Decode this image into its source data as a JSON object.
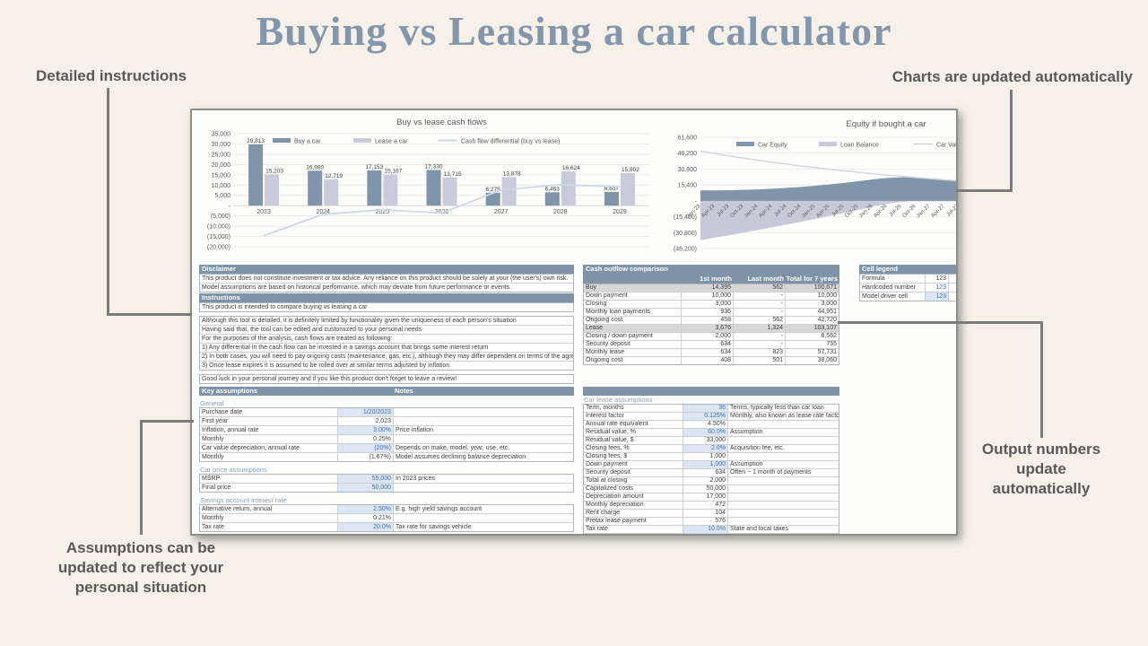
{
  "page": {
    "title": "Buying vs Leasing a car calculator",
    "annotations": {
      "top_left": "Detailed instructions",
      "top_right": "Charts are updated automatically",
      "output": "Output numbers update automatically",
      "assumptions": "Assumptions can be updated to reflect your personal situation"
    }
  },
  "colors": {
    "page_bg": "#f5f1e8",
    "title": "#8496ac",
    "annotation": "#595959",
    "connector": "#7b7b7b",
    "slate_header": "#7e92a8",
    "accent_blue": "#3f6cc0",
    "driver_bg": "#dbe6f2",
    "highlight_row": "#d7d7d7",
    "buy_series": "#8094aa",
    "lease_series": "#c9cada",
    "diff_line": "#ccd8e4",
    "car_value_line": "#d0d7dd"
  },
  "chart_data": [
    {
      "type": "bar",
      "title": "Buy vs lease cash flows",
      "categories": [
        "2023",
        "2024",
        "2025",
        "2026",
        "2027",
        "2028",
        "2029"
      ],
      "series": [
        {
          "name": "Buy a car",
          "kind": "bar",
          "color": "#8094aa",
          "values": [
            29813,
            16980,
            17153,
            17330,
            6275,
            6463,
            6657
          ]
        },
        {
          "name": "Lease a car",
          "kind": "bar",
          "color": "#c9cada",
          "values": [
            15203,
            12719,
            15167,
            13715,
            13878,
            16624,
            15802
          ]
        },
        {
          "name": "Cash flow differential (buy vs lease)",
          "kind": "line",
          "color": "#ccd8e4",
          "values": [
            -14610,
            -4261,
            -1986,
            -3615,
            7603,
            10161,
            9145
          ]
        }
      ],
      "ylim": [
        -20000,
        35000
      ],
      "ytick_step": 5000,
      "grid": true,
      "legend_position": "top"
    },
    {
      "type": "area",
      "title": "Equity if bought a car",
      "x": [
        "Jan-23",
        "Apr-23",
        "Jul-23",
        "Oct-23",
        "Jan-24",
        "Apr-24",
        "Jul-24",
        "Oct-24",
        "Jan-25",
        "Apr-25",
        "Jul-25",
        "Oct-25",
        "Jan-26",
        "Apr-26",
        "Jul-26",
        "Oct-26",
        "Jan-27",
        "Apr-27",
        "Jul-27",
        "Oct-27",
        "Jan-28",
        "Apr-28",
        "Jul-28",
        "Oct-28",
        "Jan-29",
        "Apr-29",
        "Jul-29",
        "Oct-29"
      ],
      "series": [
        {
          "name": "Car Equity",
          "kind": "area",
          "color": "#8094aa",
          "values": [
            10200,
            10100,
            10300,
            10600,
            11100,
            11700,
            12600,
            13500,
            14700,
            16000,
            17400,
            19000,
            20700,
            22100,
            22800,
            22600,
            21500,
            20400,
            19400,
            18500,
            17600,
            16700,
            15900,
            15100,
            14400,
            13700,
            13000,
            12400
          ]
        },
        {
          "name": "Loan Balance",
          "kind": "area",
          "color": "#c7c9d9",
          "values": [
            -38000,
            -35700,
            -33300,
            -30800,
            -28300,
            -25700,
            -23000,
            -20300,
            -17500,
            -14600,
            -11700,
            -8700,
            -5600,
            -2900,
            -1000,
            0,
            0,
            0,
            0,
            0,
            0,
            0,
            0,
            0,
            0,
            0,
            0,
            0
          ]
        },
        {
          "name": "Car Value",
          "kind": "line",
          "color": "#d0d7dd",
          "values": [
            48200,
            45800,
            43600,
            41400,
            39400,
            37400,
            35600,
            33800,
            32200,
            30600,
            29100,
            27700,
            26300,
            25000,
            23800,
            22600,
            21500,
            20400,
            19400,
            18500,
            17600,
            16700,
            15900,
            15100,
            14400,
            13700,
            13000,
            12400
          ]
        }
      ],
      "ylim": [
        -46200,
        61600
      ],
      "ytick_step": 15400,
      "grid": true,
      "legend_position": "top"
    }
  ],
  "tables": {
    "disclaimer": {
      "header": "Disclaimer",
      "rows": [
        "This product does not constitute investment or tax advice. Any reliance on this product should be solely at your (the user's) own risk.",
        "Model assumptions are based on historical performance, which may deviate from future performance or events."
      ]
    },
    "instructions": {
      "header": "Instructions",
      "groups": [
        [
          "This product is intended to compare buying vs leasing a car"
        ],
        [
          "Although this tool is detailed, it is definitely limited by functionality given the uniqueness of each person's situation",
          "Having said that, the tool can be edited and customized to your personal needs",
          "For the purposes of the analysis, cash flows are treated as following:",
          "1) Any differential in the cash flow can be invested in a savings account that brings some interest return",
          "2) In both cases, you will need to pay ongoing costs (maintenance, gas, etc.), although they may differ dependent on terms of the agreement",
          "3) Once lease expires it is assumed to be rolled over at similar terms adjusted by inflation"
        ],
        [
          "Good luck in your personal journey and if you like this product don't forget to leave a review!"
        ]
      ]
    },
    "key_assumptions": {
      "header": "Key assumptions",
      "notes_header": "Notes",
      "sections": [
        {
          "title": "General",
          "rows": [
            {
              "label": "Purchase date",
              "value": "1/20/2023",
              "style": "driver",
              "note": ""
            },
            {
              "label": "First year",
              "value": "2,023",
              "style": "formula",
              "note": ""
            },
            {
              "label": "Inflation, annual rate",
              "value": "3.00%",
              "style": "driver",
              "note": "Price inflation"
            },
            {
              "label": "Monthly",
              "value": "0.25%",
              "style": "formula",
              "note": ""
            },
            {
              "label": "Car value depreciation, annual rate",
              "value": "(20%)",
              "style": "driver",
              "note": "Depends on make, model, year, use, etc."
            },
            {
              "label": "Monthly",
              "value": "(1.67%)",
              "style": "formula",
              "note": "Model assumes declining balance depreciation"
            }
          ]
        },
        {
          "title": "Car price assumptions",
          "rows": [
            {
              "label": "MSRP",
              "value": "55,000",
              "style": "driver",
              "note": "In 2023 prices"
            },
            {
              "label": "Final price",
              "value": "50,000",
              "style": "driver",
              "note": ""
            }
          ]
        },
        {
          "title": "Savings account interest rate",
          "rows": [
            {
              "label": "Alternative return, annual",
              "value": "2.50%",
              "style": "driver",
              "note": "E.g. high yield savings account"
            },
            {
              "label": "Monthly",
              "value": "0.21%",
              "style": "formula",
              "note": ""
            },
            {
              "label": "Tax rate",
              "value": "20.0%",
              "style": "driver",
              "note": "Tax rate for savings vehicle"
            }
          ]
        },
        {
          "title": "Car loan assumptions",
          "rows": [
            {
              "label": "Rate",
              "value": "5.00%",
              "style": "driver",
              "note": ""
            }
          ]
        }
      ]
    },
    "cash_outflow": {
      "header": "Cash outflow comparison",
      "columns": [
        "1st month",
        "Last month",
        "Total for 7 years"
      ],
      "rows": [
        {
          "label": "Buy",
          "cells": [
            "14,395",
            "562",
            "100,671"
          ],
          "highlight": true
        },
        {
          "label": "Down payment",
          "cells": [
            "10,000",
            "-",
            "10,000"
          ]
        },
        {
          "label": "Closing",
          "cells": [
            "3,000",
            "-",
            "3,000"
          ]
        },
        {
          "label": "Monthly loan payments",
          "cells": [
            "936",
            "-",
            "44,951"
          ]
        },
        {
          "label": "Ongoing cost",
          "cells": [
            "458",
            "562",
            "42,720"
          ]
        },
        {
          "label": "Lease",
          "cells": [
            "3,676",
            "1,324",
            "103,107"
          ],
          "highlight": true
        },
        {
          "label": "Closing / down payment",
          "cells": [
            "2,000",
            "-",
            "6,562"
          ]
        },
        {
          "label": "Security deposit",
          "cells": [
            "634",
            "-",
            "755"
          ]
        },
        {
          "label": "Monthly lease",
          "cells": [
            "634",
            "823",
            "57,731"
          ]
        },
        {
          "label": "Ongoing cost",
          "cells": [
            "408",
            "501",
            "38,060"
          ]
        }
      ]
    },
    "cell_legend": {
      "header": "Cell legend",
      "rows": [
        {
          "label": "Formula",
          "value": "123",
          "style": "formula"
        },
        {
          "label": "Hardcoded number",
          "value": "123",
          "style": "hardcoded"
        },
        {
          "label": "Model driver cell",
          "value": "123",
          "style": "driver"
        }
      ]
    },
    "car_lease": {
      "title": "Car lease assumptions",
      "rows": [
        {
          "label": "Term, months",
          "value": "36",
          "style": "driver",
          "note": "Terms, typically less than car loan"
        },
        {
          "label": "Interest factor",
          "value": "0.125%",
          "style": "driver",
          "note": "Monthly, also known as lease rate factor"
        },
        {
          "label": "Annual rate equivalent",
          "value": "4.50%",
          "style": "formula",
          "note": ""
        },
        {
          "label": "Residual value, %",
          "value": "60.0%",
          "style": "driver",
          "note": "Assumption"
        },
        {
          "label": "Residual value, $",
          "value": "33,000",
          "style": "formula",
          "note": ""
        },
        {
          "label": "Closing fees, %",
          "value": "2.0%",
          "style": "driver",
          "note": "Acquisition fee, etc."
        },
        {
          "label": "Closing fees, $",
          "value": "1,000",
          "style": "formula",
          "note": ""
        },
        {
          "label": "Down payment",
          "value": "1,000",
          "style": "driver",
          "note": "Assumption"
        },
        {
          "label": "Security deposit",
          "value": "634",
          "style": "formula",
          "note": "Often ~ 1 month of payments"
        },
        {
          "label": "Total at closing",
          "value": "2,000",
          "style": "formula",
          "note": ""
        },
        {
          "label": "Capitalized costs",
          "value": "50,000",
          "style": "formula",
          "note": ""
        },
        {
          "label": "Depreciation amount",
          "value": "17,000",
          "style": "formula",
          "note": ""
        },
        {
          "label": "Monthly depreciation",
          "value": "472",
          "style": "formula",
          "note": ""
        },
        {
          "label": "Rent charge",
          "value": "104",
          "style": "formula",
          "note": ""
        },
        {
          "label": "Pretax lease payment",
          "value": "576",
          "style": "formula",
          "note": ""
        },
        {
          "label": "Tax rate",
          "value": "10.0%",
          "style": "driver",
          "note": "State and local taxes"
        },
        {
          "label": "Monthly payment",
          "value": "634",
          "style": "bold",
          "note": ""
        }
      ]
    }
  }
}
